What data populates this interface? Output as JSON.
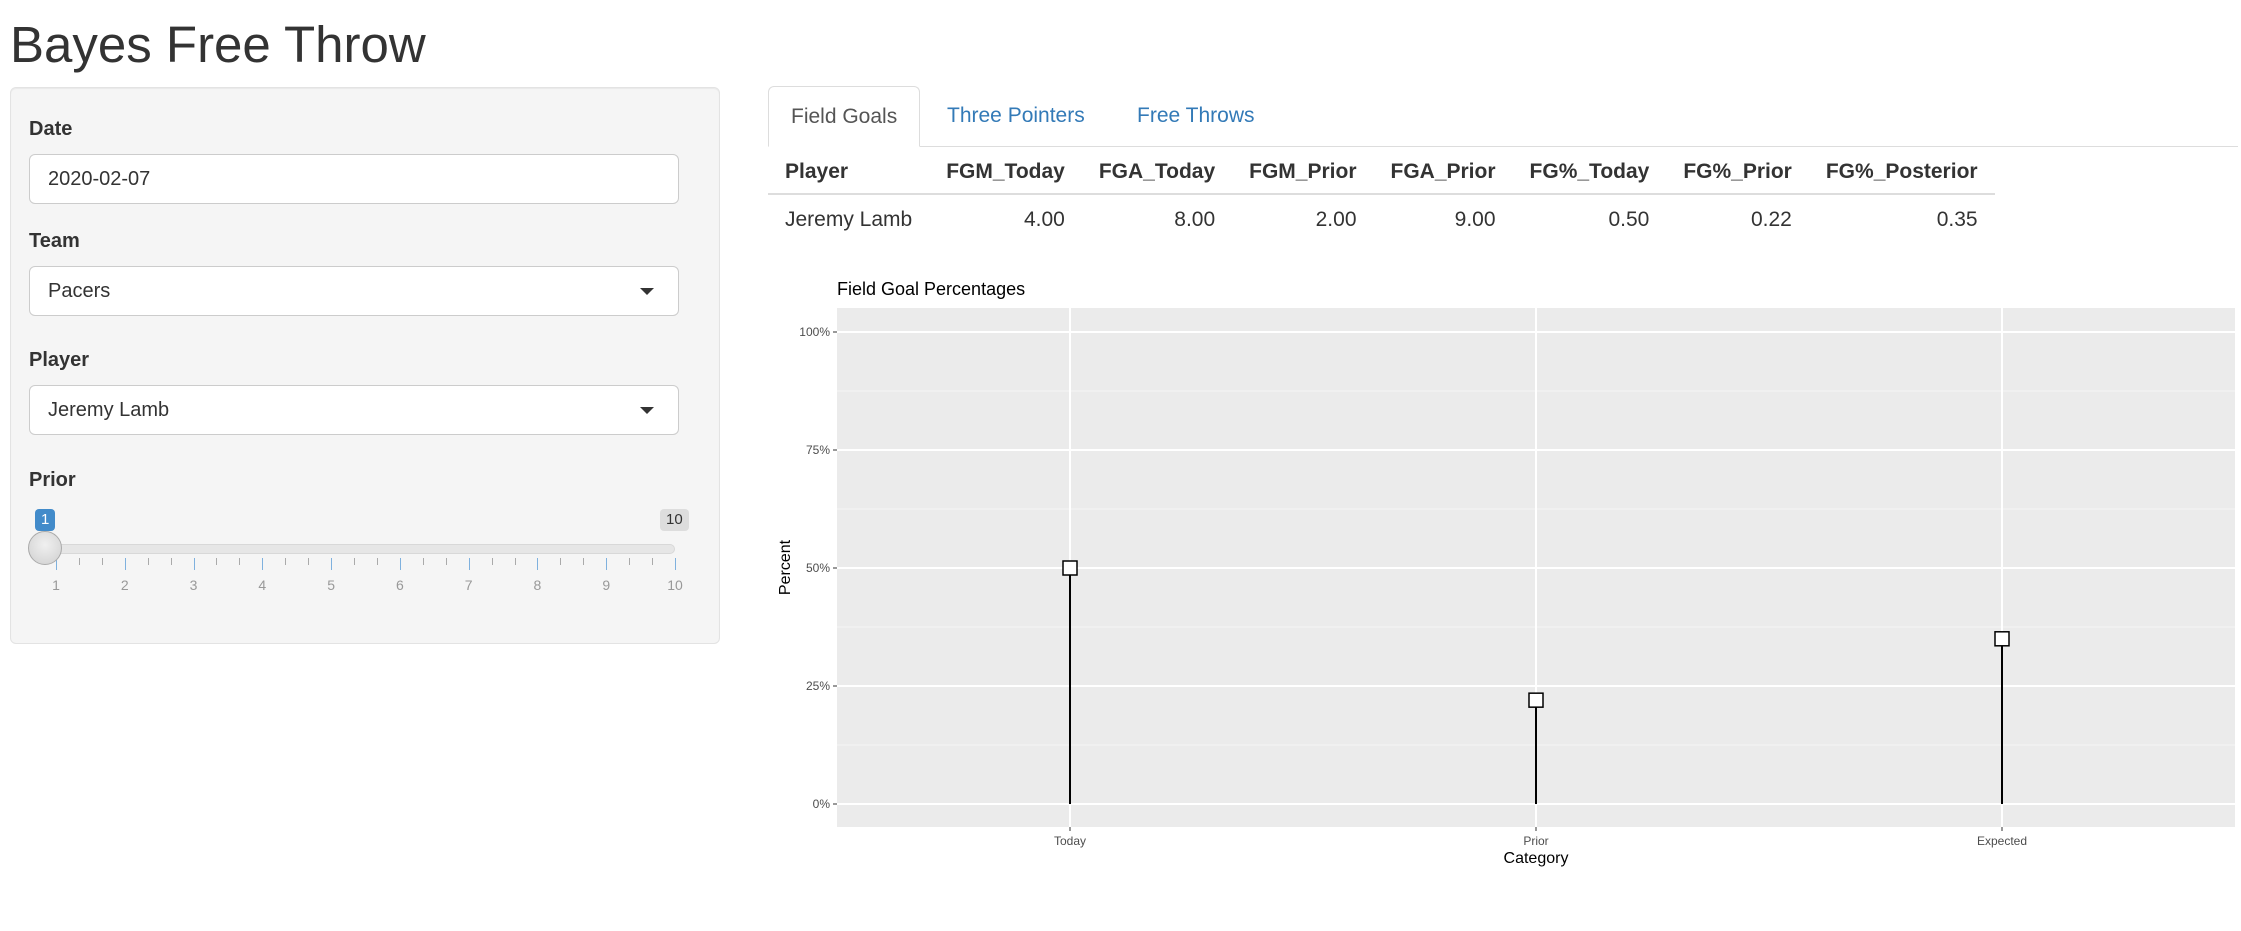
{
  "app": {
    "title": "Bayes Free Throw"
  },
  "sidebar": {
    "date": {
      "label": "Date",
      "value": "2020-02-07"
    },
    "team": {
      "label": "Team",
      "value": "Pacers"
    },
    "player": {
      "label": "Player",
      "value": "Jeremy Lamb"
    },
    "prior": {
      "label": "Prior",
      "value": 1,
      "min": 1,
      "max": 10,
      "min_label": "1",
      "max_label": "10",
      "tick_labels": [
        "1",
        "2",
        "3",
        "4",
        "5",
        "6",
        "7",
        "8",
        "9",
        "10"
      ]
    }
  },
  "tabs": [
    {
      "label": "Field Goals",
      "active": true
    },
    {
      "label": "Three Pointers",
      "active": false
    },
    {
      "label": "Free Throws",
      "active": false
    }
  ],
  "table": {
    "headers": [
      "Player",
      "FGM_Today",
      "FGA_Today",
      "FGM_Prior",
      "FGA_Prior",
      "FG%_Today",
      "FG%_Prior",
      "FG%_Posterior"
    ],
    "rows": [
      [
        "Jeremy Lamb",
        "4.00",
        "8.00",
        "2.00",
        "9.00",
        "0.50",
        "0.22",
        "0.35"
      ]
    ]
  },
  "chart_data": {
    "type": "lollipop",
    "title": "Field Goal Percentages",
    "xlabel": "Category",
    "ylabel": "Percent",
    "categories": [
      "Today",
      "Prior",
      "Expected"
    ],
    "values": [
      0.5,
      0.22,
      0.35
    ],
    "ylim": [
      0,
      1
    ],
    "y_ticks": [
      "0%",
      "25%",
      "50%",
      "75%",
      "100%"
    ],
    "grid": true
  },
  "colors": {
    "accent": "#428bca",
    "link": "#337ab7",
    "panel_bg": "#ebebeb"
  }
}
